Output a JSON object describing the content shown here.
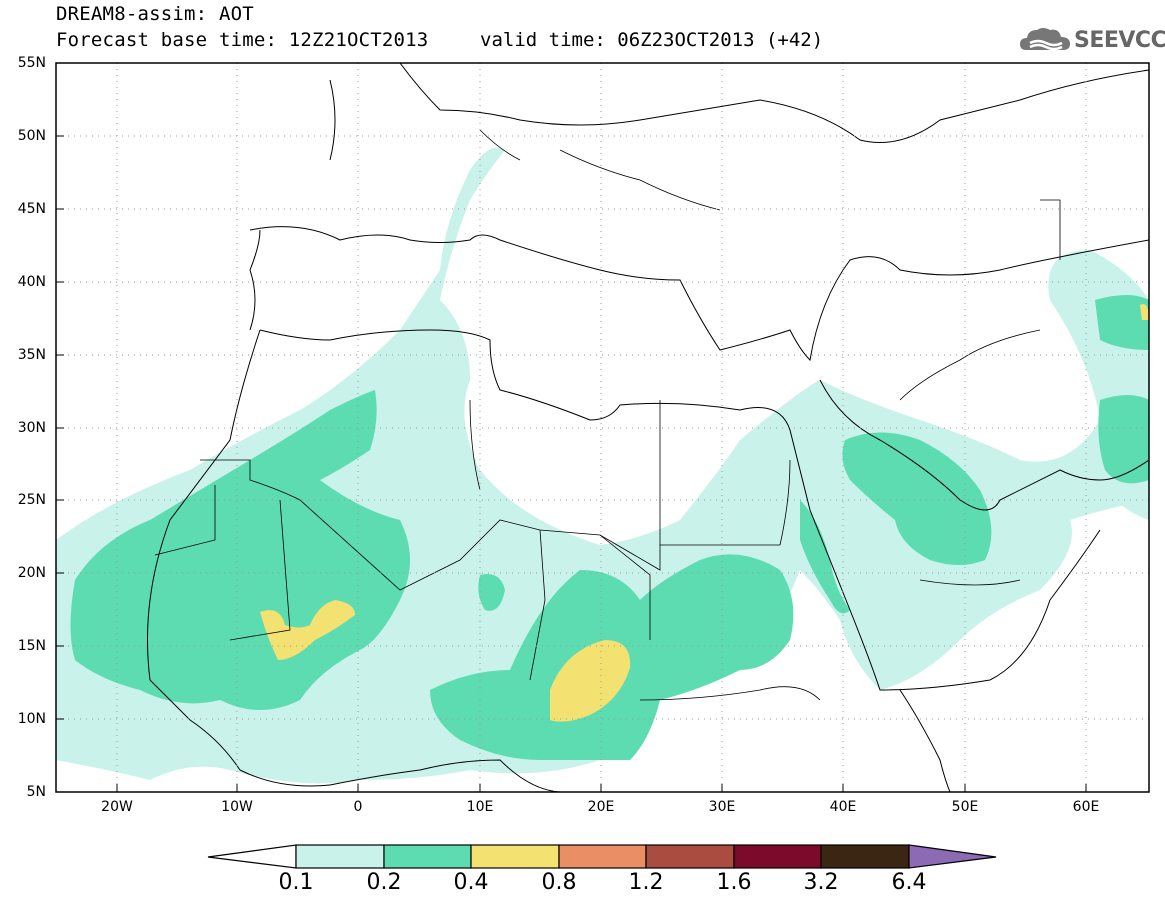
{
  "header": {
    "title": "DREAM8-assim: AOT",
    "subtitle": "Forecast base time: 12Z21OCT2013",
    "valid_time": "valid time: 06Z23OCT2013 (+42)"
  },
  "logo": {
    "text": "SEEVCCC",
    "icon": "cloud-icon"
  },
  "map": {
    "lat_labels": [
      "55N",
      "50N",
      "45N",
      "40N",
      "35N",
      "30N",
      "25N",
      "20N",
      "15N",
      "10N",
      "5N"
    ],
    "lon_labels": [
      "20W",
      "10W",
      "0",
      "10E",
      "20E",
      "30E",
      "40E",
      "50E",
      "60E"
    ],
    "extent": {
      "lon": [
        -25,
        65
      ],
      "lat": [
        5,
        55
      ]
    },
    "grid": "dotted"
  },
  "colorbar": {
    "labels": [
      "0.1",
      "0.2",
      "0.4",
      "0.8",
      "1.2",
      "1.6",
      "3.2",
      "6.4"
    ],
    "colors": [
      "#ffffff",
      "#c9f2ea",
      "#5ddcb1",
      "#f3e171",
      "#ea8f65",
      "#aa4c40",
      "#7c0a2a",
      "#3b2613",
      "#8c6ab4"
    ]
  }
}
